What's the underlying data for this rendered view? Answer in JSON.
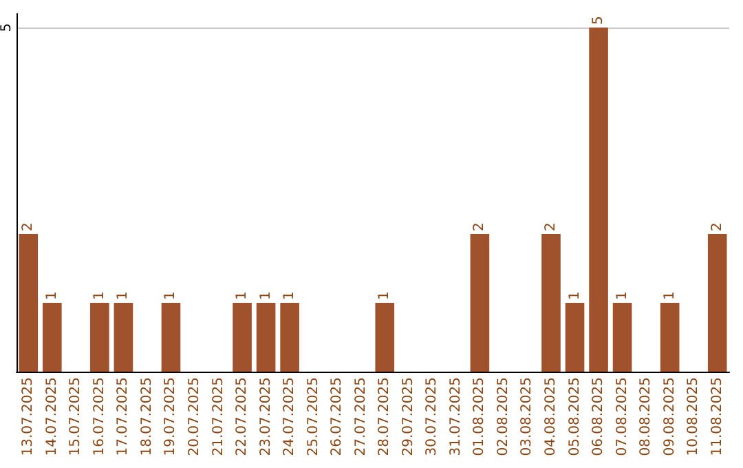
{
  "chart_data": {
    "type": "bar",
    "categories": [
      "13.07.2025",
      "14.07.2025",
      "15.07.2025",
      "16.07.2025",
      "17.07.2025",
      "18.07.2025",
      "19.07.2025",
      "20.07.2025",
      "21.07.2025",
      "22.07.2025",
      "23.07.2025",
      "24.07.2025",
      "25.07.2025",
      "26.07.2025",
      "27.07.2025",
      "28.07.2025",
      "29.07.2025",
      "30.07.2025",
      "31.07.2025",
      "01.08.2025",
      "02.08.2025",
      "03.08.2025",
      "04.08.2025",
      "05.08.2025",
      "06.08.2025",
      "07.08.2025",
      "08.08.2025",
      "09.08.2025",
      "10.08.2025",
      "11.08.2025"
    ],
    "values": [
      2,
      1,
      0,
      1,
      1,
      0,
      1,
      0,
      0,
      1,
      1,
      1,
      0,
      0,
      0,
      1,
      0,
      0,
      0,
      2,
      0,
      0,
      2,
      1,
      5,
      1,
      0,
      1,
      0,
      2
    ],
    "value_labels": [
      "2",
      "1",
      null,
      "1",
      "1",
      null,
      "1",
      null,
      null,
      "1",
      "1",
      "1",
      null,
      null,
      null,
      "1",
      null,
      null,
      null,
      "2",
      null,
      null,
      "2",
      "1",
      "5",
      "1",
      null,
      "1",
      null,
      "2"
    ],
    "color": "#a0522d",
    "ylim": [
      0,
      5.2
    ],
    "yticks": [
      5
    ],
    "grid": "y"
  }
}
